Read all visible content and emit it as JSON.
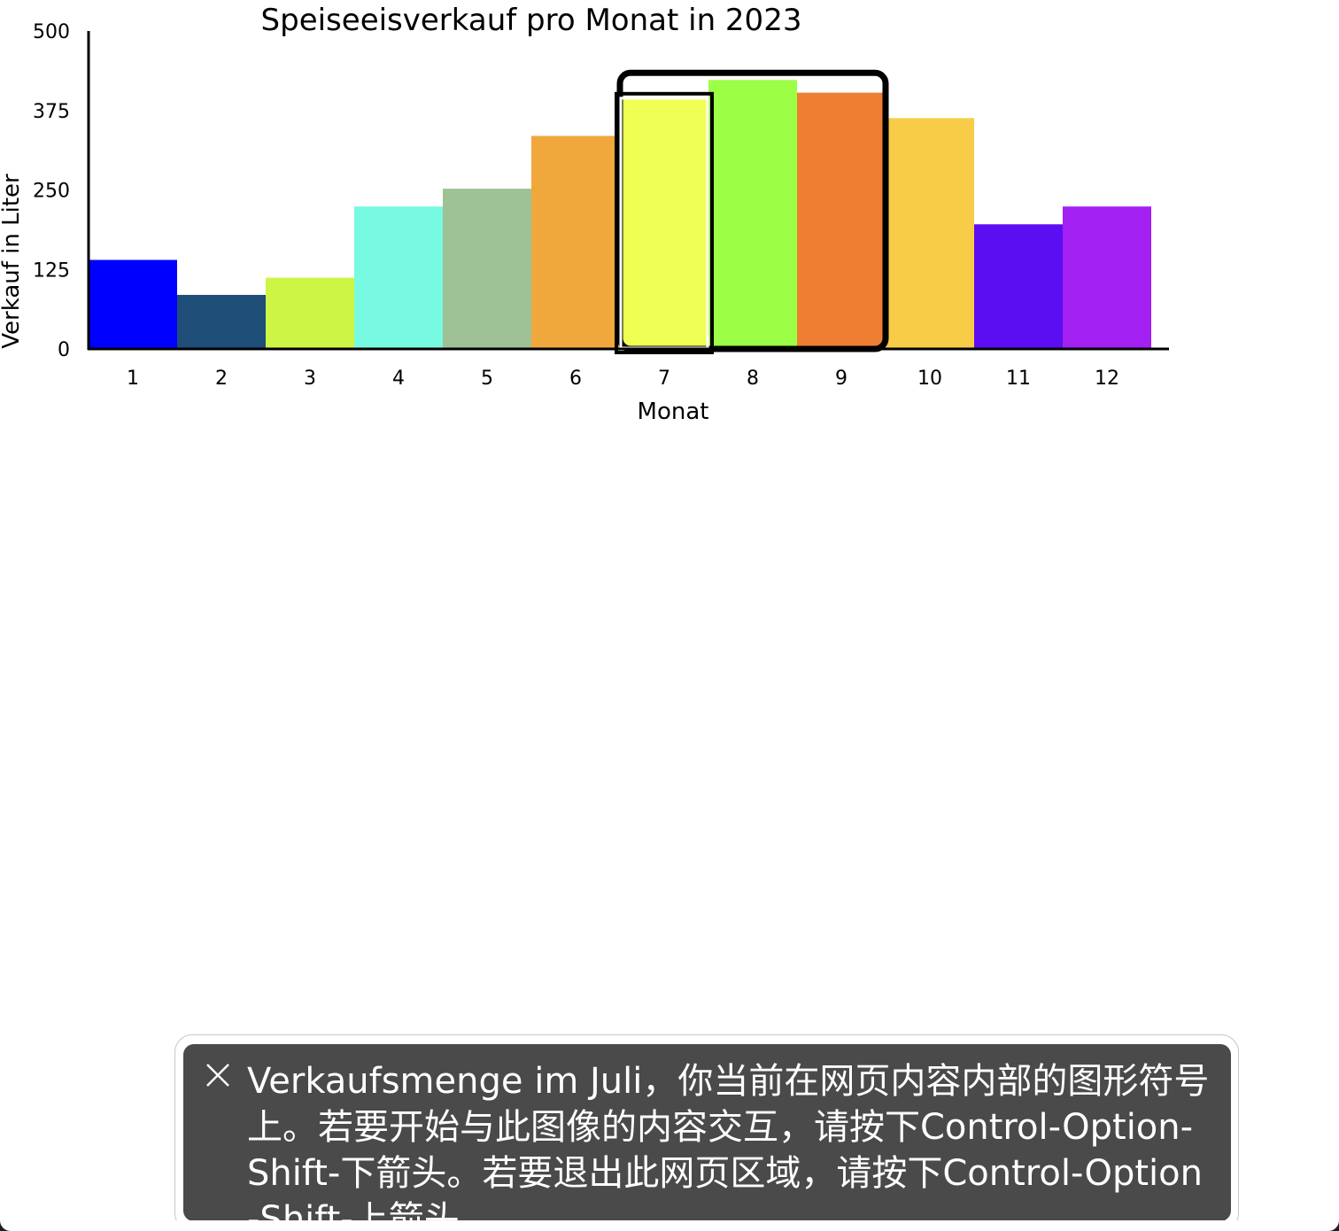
{
  "chart_data": {
    "type": "bar",
    "title": "Speiseeisverkauf pro Monat in 2023",
    "xlabel": "Monat",
    "ylabel": "Verkauf in Liter",
    "ylim": [
      0,
      500
    ],
    "yticks": [
      "0",
      "125",
      "250",
      "375",
      "500"
    ],
    "categories": [
      "1",
      "2",
      "3",
      "4",
      "5",
      "6",
      "7",
      "8",
      "9",
      "10",
      "11",
      "12"
    ],
    "values": [
      140,
      85,
      112,
      224,
      252,
      335,
      393,
      423,
      403,
      363,
      196,
      224
    ],
    "colors": [
      "#0000ff",
      "#1f4e79",
      "#ccf545",
      "#78f9e1",
      "#9ec196",
      "#f0a83c",
      "#f0ff53",
      "#9cff46",
      "#ef7e33",
      "#f8cc46",
      "#5c0ef2",
      "#a221f2"
    ],
    "focused_category": "7",
    "focus_group_categories": [
      "7",
      "8",
      "9"
    ]
  },
  "voiceover_caption": {
    "text": "Verkaufsmenge im Juli，你当前在网页内容内部的图形符号上。若要开始与此图像的内容交互，请按下Control-Option-Shift-下箭头。若要退出此网页区域，请按下Control-Option-Shift-上箭头。",
    "close_icon": "close-icon"
  }
}
